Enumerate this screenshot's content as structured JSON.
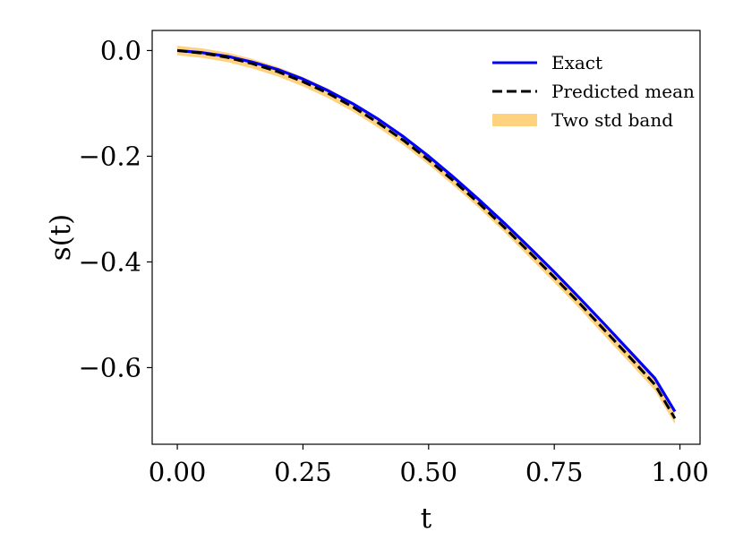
{
  "chart_data": {
    "type": "line",
    "xlabel": "t",
    "ylabel": "s(t)",
    "xlim": [
      -0.05,
      1.04
    ],
    "ylim": [
      -0.745,
      0.038
    ],
    "x_ticks": [
      {
        "value": 0.0,
        "label": "0.00"
      },
      {
        "value": 0.25,
        "label": "0.25"
      },
      {
        "value": 0.5,
        "label": "0.50"
      },
      {
        "value": 0.75,
        "label": "0.75"
      },
      {
        "value": 1.0,
        "label": "1.00"
      }
    ],
    "y_ticks": [
      {
        "value": 0.0,
        "label": "0.0"
      },
      {
        "value": -0.2,
        "label": "−0.2"
      },
      {
        "value": -0.4,
        "label": "−0.4"
      },
      {
        "value": -0.6,
        "label": "−0.6"
      }
    ],
    "grid": false,
    "legend_position": "top-right",
    "x": [
      0.0,
      0.05,
      0.1,
      0.15,
      0.2,
      0.25,
      0.3,
      0.35,
      0.4,
      0.45,
      0.5,
      0.55,
      0.6,
      0.65,
      0.7,
      0.75,
      0.8,
      0.85,
      0.9,
      0.95,
      0.99
    ],
    "series": [
      {
        "name": "Exact",
        "style": "solid",
        "color": "#0000ff",
        "values": [
          0.0,
          -0.004,
          -0.011,
          -0.022,
          -0.036,
          -0.054,
          -0.076,
          -0.101,
          -0.13,
          -0.163,
          -0.2,
          -0.24,
          -0.282,
          -0.326,
          -0.372,
          -0.419,
          -0.468,
          -0.518,
          -0.569,
          -0.62,
          -0.683
        ]
      },
      {
        "name": "Predicted mean",
        "style": "dashed",
        "color": "#000000",
        "values": [
          0.0,
          -0.005,
          -0.013,
          -0.025,
          -0.04,
          -0.059,
          -0.081,
          -0.107,
          -0.137,
          -0.17,
          -0.207,
          -0.247,
          -0.289,
          -0.334,
          -0.381,
          -0.429,
          -0.478,
          -0.529,
          -0.58,
          -0.632,
          -0.696
        ]
      },
      {
        "name": "Two std band",
        "style": "band",
        "color": "#ffd27f",
        "upper": [
          0.009,
          0.004,
          -0.004,
          -0.016,
          -0.031,
          -0.05,
          -0.072,
          -0.098,
          -0.128,
          -0.161,
          -0.198,
          -0.238,
          -0.28,
          -0.325,
          -0.371,
          -0.419,
          -0.468,
          -0.518,
          -0.569,
          -0.621,
          -0.685
        ],
        "lower": [
          -0.009,
          -0.014,
          -0.022,
          -0.034,
          -0.049,
          -0.068,
          -0.09,
          -0.116,
          -0.146,
          -0.179,
          -0.216,
          -0.256,
          -0.298,
          -0.343,
          -0.391,
          -0.439,
          -0.488,
          -0.54,
          -0.591,
          -0.643,
          -0.707
        ]
      }
    ]
  }
}
